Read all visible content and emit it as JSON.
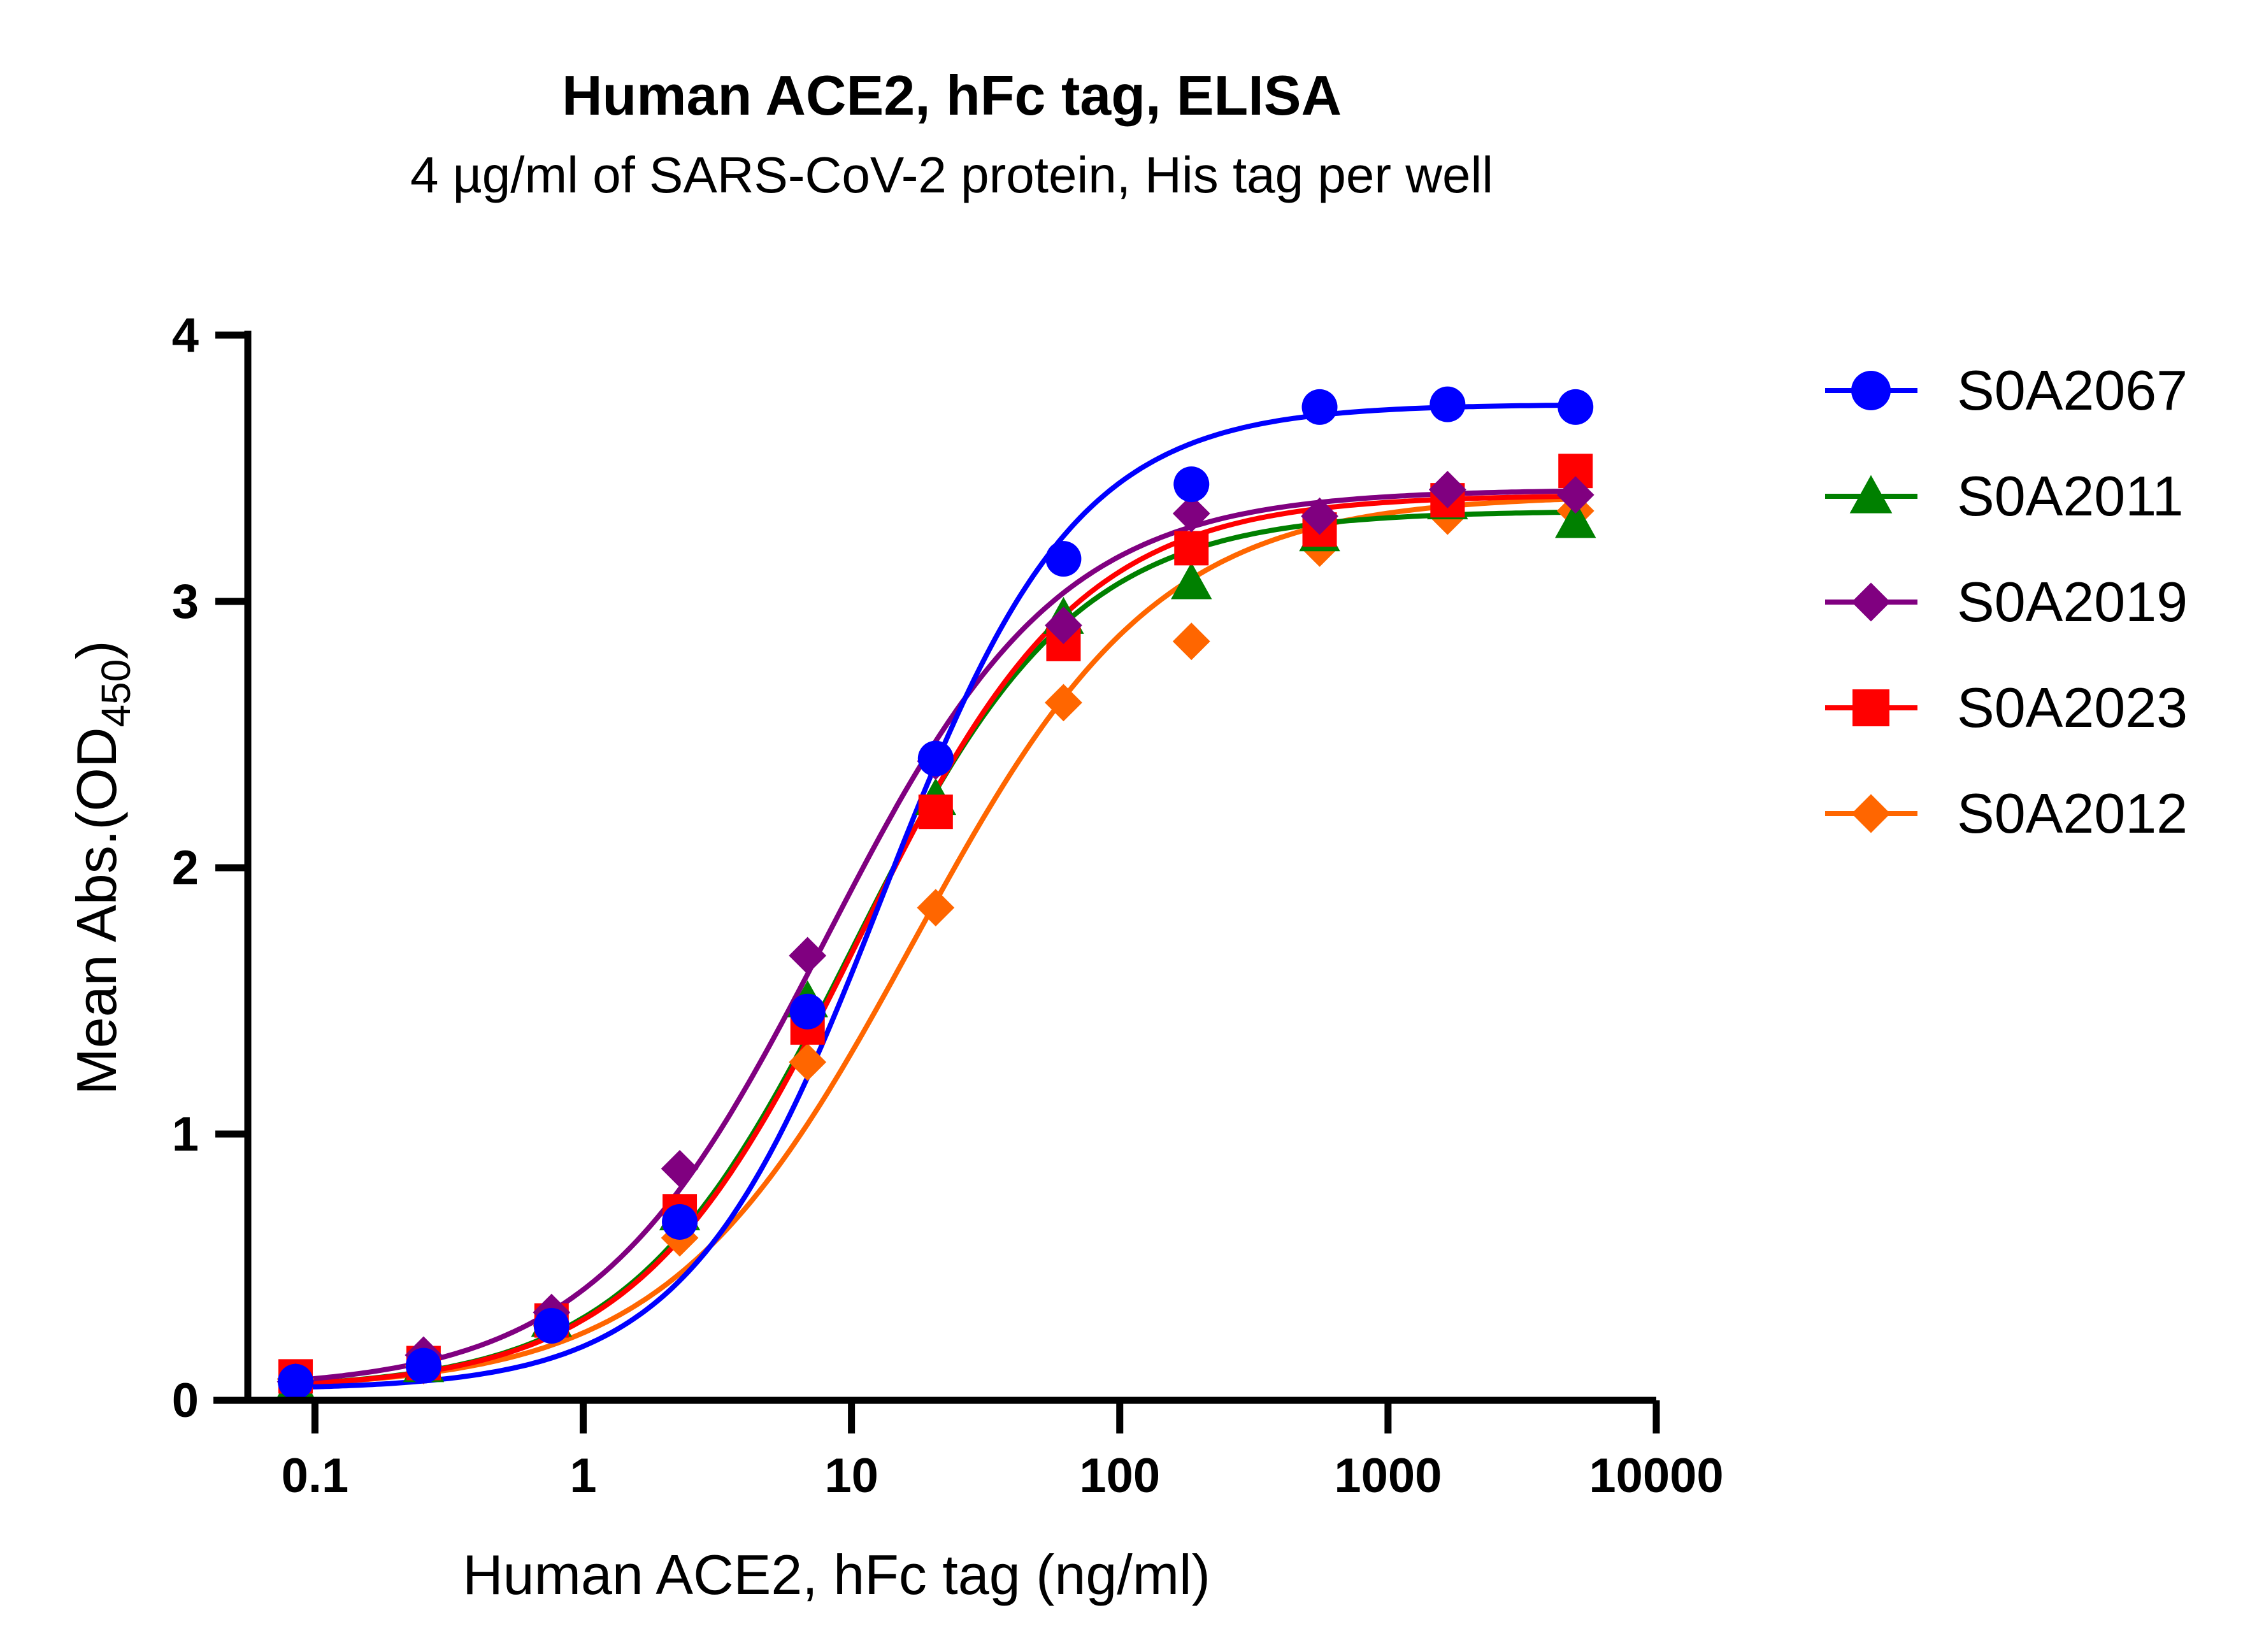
{
  "chart_data": {
    "type": "scatter",
    "title": "Human ACE2, hFc tag, ELISA",
    "subtitle": "4 µg/ml of SARS-CoV-2 protein, His tag per well",
    "xlabel": "Human ACE2, hFc tag (ng/ml)",
    "ylabel_main": "Mean Abs.(OD",
    "ylabel_sub": "450",
    "ylabel_close": ")",
    "xscale": "log",
    "xlim": [
      0.0562,
      10000
    ],
    "ylim": [
      0,
      4
    ],
    "x_ticks": [
      0.1,
      1,
      10,
      100,
      1000,
      10000
    ],
    "x_tick_labels": [
      "0.1",
      "1",
      "10",
      "100",
      "1000",
      "10000"
    ],
    "y_ticks": [
      0,
      1,
      2,
      3,
      4
    ],
    "y_tick_labels": [
      "0",
      "1",
      "2",
      "3",
      "4"
    ],
    "legend_position": "right",
    "x": [
      0.0847,
      0.254,
      0.762,
      2.29,
      6.86,
      20.6,
      61.7,
      185,
      556,
      1667,
      5000
    ],
    "series": [
      {
        "name": "S0A2067",
        "color": "#0000ff",
        "marker": "circle",
        "values": [
          0.07,
          0.13,
          0.28,
          0.67,
          1.46,
          2.41,
          3.16,
          3.44,
          3.73,
          3.74,
          3.73
        ],
        "fit": {
          "bottom": 0.04,
          "top": 3.74,
          "ec50": 13.0,
          "hill": 1.2
        }
      },
      {
        "name": "S0A2011",
        "color": "#008000",
        "marker": "triangle",
        "values": [
          0.06,
          0.13,
          0.3,
          0.7,
          1.5,
          2.26,
          2.94,
          3.07,
          3.25,
          3.37,
          3.3
        ],
        "fit": {
          "bottom": 0.04,
          "top": 3.34,
          "ec50": 10.0,
          "hill": 1.05
        }
      },
      {
        "name": "S0A2019",
        "color": "#800080",
        "marker": "diamond",
        "values": [
          0.07,
          0.17,
          0.33,
          0.87,
          1.67,
          2.4,
          2.91,
          3.33,
          3.32,
          3.42,
          3.4
        ],
        "fit": {
          "bottom": 0.04,
          "top": 3.42,
          "ec50": 8.0,
          "hill": 1.0
        }
      },
      {
        "name": "S0A2023",
        "color": "#ff0000",
        "marker": "square",
        "values": [
          0.09,
          0.14,
          0.3,
          0.71,
          1.4,
          2.21,
          2.84,
          3.2,
          3.27,
          3.38,
          3.49
        ],
        "fit": {
          "bottom": 0.04,
          "top": 3.4,
          "ec50": 10.5,
          "hill": 1.05
        }
      },
      {
        "name": "S0A2012",
        "color": "#ff6600",
        "marker": "diamond",
        "values": [
          0.08,
          0.13,
          0.28,
          0.61,
          1.27,
          1.85,
          2.62,
          2.85,
          3.2,
          3.32,
          3.34
        ],
        "fit": {
          "bottom": 0.04,
          "top": 3.4,
          "ec50": 17.0,
          "hill": 0.95
        }
      }
    ]
  }
}
